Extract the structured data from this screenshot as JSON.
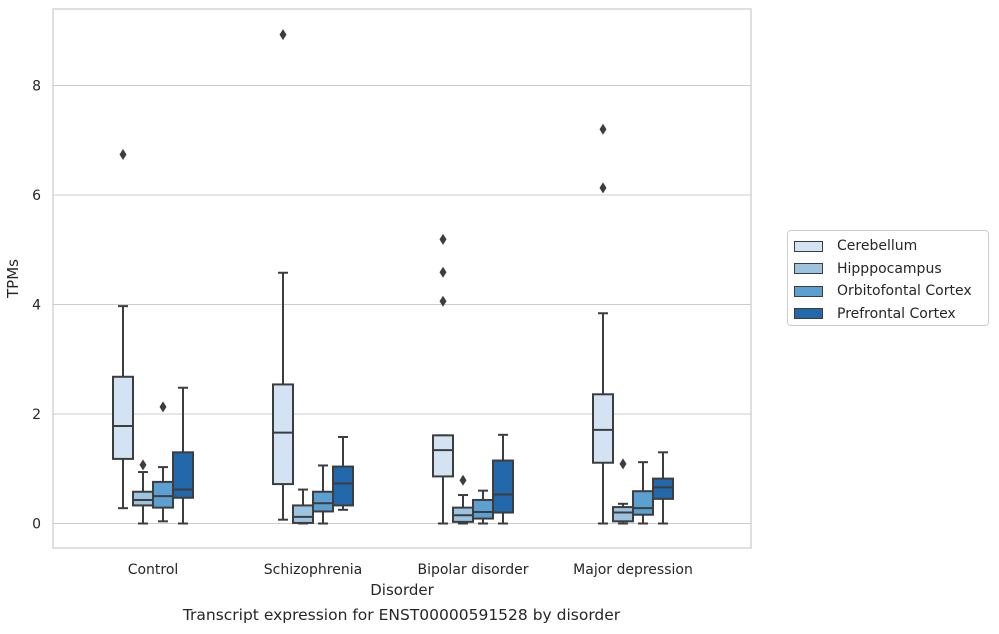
{
  "chart_data": {
    "type": "box",
    "title": "",
    "caption": "Transcript expression for ENST00000591528 by disorder",
    "xlabel": "Disorder",
    "ylabel": "TPMs",
    "ylim": [
      -0.45,
      9.3
    ],
    "yticks": [
      0,
      2,
      4,
      6,
      8
    ],
    "grid": "horizontal",
    "legend_position": "right",
    "categories": [
      "Control",
      "Schizophrenia",
      "Bipolar disorder",
      "Major depression"
    ],
    "series": [
      {
        "name": "Cerebellum",
        "color": "#d4e3f3",
        "boxes": [
          {
            "whislo": 0.28,
            "q1": 1.18,
            "med": 1.78,
            "q3": 2.68,
            "whishi": 3.97,
            "fliers": [
              6.74
            ]
          },
          {
            "whislo": 0.07,
            "q1": 0.72,
            "med": 1.66,
            "q3": 2.54,
            "whishi": 4.58,
            "fliers": [
              8.93
            ]
          },
          {
            "whislo": 0.0,
            "q1": 0.86,
            "med": 1.34,
            "q3": 1.61,
            "whishi": 1.61,
            "fliers": [
              4.06,
              4.59,
              5.19
            ]
          },
          {
            "whislo": 0.0,
            "q1": 1.11,
            "med": 1.71,
            "q3": 2.36,
            "whishi": 3.84,
            "fliers": [
              6.13,
              7.2
            ]
          }
        ]
      },
      {
        "name": "Hipppocampus",
        "color": "#9cc3e0",
        "boxes": [
          {
            "whislo": 0.0,
            "q1": 0.33,
            "med": 0.43,
            "q3": 0.58,
            "whishi": 0.94,
            "fliers": [
              1.07
            ]
          },
          {
            "whislo": 0.0,
            "q1": 0.01,
            "med": 0.12,
            "q3": 0.33,
            "whishi": 0.62,
            "fliers": []
          },
          {
            "whislo": 0.0,
            "q1": 0.03,
            "med": 0.15,
            "q3": 0.29,
            "whishi": 0.52,
            "fliers": [
              0.79
            ]
          },
          {
            "whislo": 0.0,
            "q1": 0.04,
            "med": 0.2,
            "q3": 0.3,
            "whishi": 0.36,
            "fliers": [
              1.09
            ]
          }
        ]
      },
      {
        "name": "Orbitofontal Cortex",
        "color": "#5ba0d0",
        "boxes": [
          {
            "whislo": 0.04,
            "q1": 0.29,
            "med": 0.5,
            "q3": 0.76,
            "whishi": 1.03,
            "fliers": [
              2.13
            ]
          },
          {
            "whislo": 0.0,
            "q1": 0.22,
            "med": 0.37,
            "q3": 0.58,
            "whishi": 1.06,
            "fliers": []
          },
          {
            "whislo": 0.0,
            "q1": 0.09,
            "med": 0.21,
            "q3": 0.43,
            "whishi": 0.6,
            "fliers": []
          },
          {
            "whislo": 0.0,
            "q1": 0.16,
            "med": 0.28,
            "q3": 0.59,
            "whishi": 1.12,
            "fliers": []
          }
        ]
      },
      {
        "name": "Prefrontal Cortex",
        "color": "#2268aa",
        "boxes": [
          {
            "whislo": 0.0,
            "q1": 0.47,
            "med": 0.62,
            "q3": 1.3,
            "whishi": 2.48,
            "fliers": []
          },
          {
            "whislo": 0.25,
            "q1": 0.33,
            "med": 0.73,
            "q3": 1.04,
            "whishi": 1.58,
            "fliers": []
          },
          {
            "whislo": 0.0,
            "q1": 0.2,
            "med": 0.53,
            "q3": 1.15,
            "whishi": 1.62,
            "fliers": []
          },
          {
            "whislo": 0.0,
            "q1": 0.45,
            "med": 0.66,
            "q3": 0.82,
            "whishi": 1.3,
            "fliers": []
          }
        ]
      }
    ]
  }
}
